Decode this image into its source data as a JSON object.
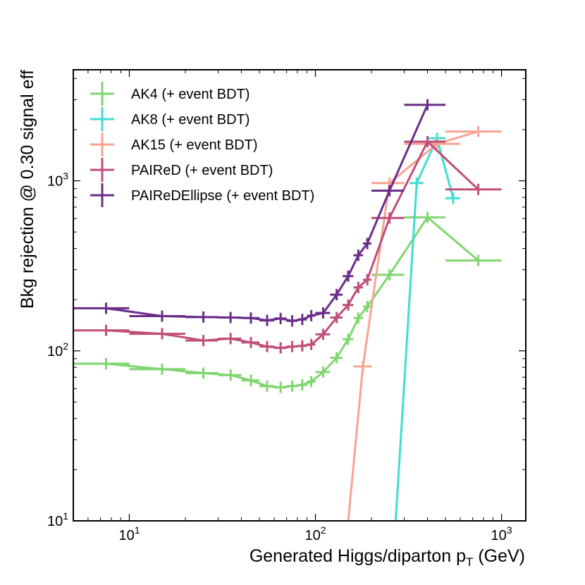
{
  "chart_data": {
    "type": "line",
    "xscale": "log",
    "yscale": "log",
    "xlim": [
      5,
      1350
    ],
    "ylim": [
      10,
      4500
    ],
    "xlabel": "Generated Higgs/diparton p",
    "xlabel_sub": "T",
    "xlabel_unit": " (GeV)",
    "ylabel": "Bkg rejection @ 0.30 signal eff",
    "xticks": [
      {
        "value": 10,
        "base": "10",
        "exp": "1"
      },
      {
        "value": 100,
        "base": "10",
        "exp": "2"
      },
      {
        "value": 1000,
        "base": "10",
        "exp": "3"
      }
    ],
    "yticks": [
      {
        "value": 10,
        "base": "10",
        "exp": "1"
      },
      {
        "value": 100,
        "base": "10",
        "exp": "2"
      },
      {
        "value": 1000,
        "base": "10",
        "exp": "3"
      }
    ],
    "legend_position": "top-left",
    "series": [
      {
        "name": "AK4 (+ event BDT)",
        "color": "#7fd670",
        "points": [
          {
            "x": 7.5,
            "xlo": 5,
            "xhi": 10,
            "y": 84
          },
          {
            "x": 15,
            "xlo": 10,
            "xhi": 20,
            "y": 78
          },
          {
            "x": 25,
            "xlo": 20,
            "xhi": 30,
            "y": 74
          },
          {
            "x": 35,
            "xlo": 30,
            "xhi": 40,
            "y": 72
          },
          {
            "x": 45,
            "xlo": 40,
            "xhi": 50,
            "y": 67
          },
          {
            "x": 55,
            "xlo": 50,
            "xhi": 60,
            "y": 62
          },
          {
            "x": 65,
            "xlo": 60,
            "xhi": 70,
            "y": 61
          },
          {
            "x": 75,
            "xlo": 70,
            "xhi": 80,
            "y": 62
          },
          {
            "x": 85,
            "xlo": 80,
            "xhi": 90,
            "y": 63
          },
          {
            "x": 95,
            "xlo": 90,
            "xhi": 100,
            "y": 66
          },
          {
            "x": 110,
            "xlo": 100,
            "xhi": 120,
            "y": 75
          },
          {
            "x": 130,
            "xlo": 120,
            "xhi": 140,
            "y": 91
          },
          {
            "x": 150,
            "xlo": 140,
            "xhi": 160,
            "y": 117
          },
          {
            "x": 170,
            "xlo": 160,
            "xhi": 180,
            "y": 156
          },
          {
            "x": 190,
            "xlo": 180,
            "xhi": 200,
            "y": 182
          },
          {
            "x": 250,
            "xlo": 200,
            "xhi": 300,
            "y": 280
          },
          {
            "x": 400,
            "xlo": 300,
            "xhi": 500,
            "y": 610
          },
          {
            "x": 750,
            "xlo": 500,
            "xhi": 1000,
            "y": 340
          }
        ]
      },
      {
        "name": "AK8 (+ event BDT)",
        "color": "#40ddd0",
        "points": [
          {
            "x": 270,
            "xlo": 270,
            "xhi": 270,
            "y": 10
          },
          {
            "x": 350,
            "xlo": 320,
            "xhi": 380,
            "y": 970
          },
          {
            "x": 450,
            "xlo": 400,
            "xhi": 500,
            "y": 1780
          },
          {
            "x": 550,
            "xlo": 500,
            "xhi": 600,
            "y": 790
          }
        ]
      },
      {
        "name": "AK15 (+ event BDT)",
        "color": "#f9a393",
        "points": [
          {
            "x": 150,
            "xlo": 150,
            "xhi": 150,
            "y": 10
          },
          {
            "x": 180,
            "xlo": 160,
            "xhi": 200,
            "y": 81
          },
          {
            "x": 250,
            "xlo": 200,
            "xhi": 300,
            "y": 970
          },
          {
            "x": 450,
            "xlo": 300,
            "xhi": 600,
            "y": 1650
          },
          {
            "x": 750,
            "xlo": 500,
            "xhi": 1000,
            "y": 1950
          }
        ]
      },
      {
        "name": "PAIReD (+ event BDT)",
        "color": "#c04e78",
        "points": [
          {
            "x": 7.5,
            "xlo": 5,
            "xhi": 10,
            "y": 132
          },
          {
            "x": 15,
            "xlo": 10,
            "xhi": 20,
            "y": 126
          },
          {
            "x": 25,
            "xlo": 20,
            "xhi": 30,
            "y": 115
          },
          {
            "x": 35,
            "xlo": 30,
            "xhi": 40,
            "y": 118
          },
          {
            "x": 45,
            "xlo": 40,
            "xhi": 50,
            "y": 112
          },
          {
            "x": 55,
            "xlo": 50,
            "xhi": 60,
            "y": 106
          },
          {
            "x": 65,
            "xlo": 60,
            "xhi": 70,
            "y": 104
          },
          {
            "x": 75,
            "xlo": 70,
            "xhi": 80,
            "y": 106
          },
          {
            "x": 85,
            "xlo": 80,
            "xhi": 90,
            "y": 107
          },
          {
            "x": 95,
            "xlo": 90,
            "xhi": 100,
            "y": 109
          },
          {
            "x": 110,
            "xlo": 100,
            "xhi": 120,
            "y": 125
          },
          {
            "x": 130,
            "xlo": 120,
            "xhi": 140,
            "y": 157
          },
          {
            "x": 150,
            "xlo": 140,
            "xhi": 160,
            "y": 186
          },
          {
            "x": 170,
            "xlo": 160,
            "xhi": 180,
            "y": 236
          },
          {
            "x": 190,
            "xlo": 180,
            "xhi": 200,
            "y": 262
          },
          {
            "x": 250,
            "xlo": 200,
            "xhi": 300,
            "y": 605
          },
          {
            "x": 400,
            "xlo": 300,
            "xhi": 500,
            "y": 1700
          },
          {
            "x": 750,
            "xlo": 500,
            "xhi": 1000,
            "y": 890
          }
        ]
      },
      {
        "name": "PAIReDEllipse (+ event BDT)",
        "color": "#6b2d8a",
        "points": [
          {
            "x": 7.5,
            "xlo": 5,
            "xhi": 10,
            "y": 178
          },
          {
            "x": 15,
            "xlo": 10,
            "xhi": 20,
            "y": 160
          },
          {
            "x": 25,
            "xlo": 20,
            "xhi": 30,
            "y": 158
          },
          {
            "x": 35,
            "xlo": 30,
            "xhi": 40,
            "y": 157
          },
          {
            "x": 45,
            "xlo": 40,
            "xhi": 50,
            "y": 156
          },
          {
            "x": 55,
            "xlo": 50,
            "xhi": 60,
            "y": 151
          },
          {
            "x": 65,
            "xlo": 60,
            "xhi": 70,
            "y": 155
          },
          {
            "x": 75,
            "xlo": 70,
            "xhi": 80,
            "y": 150
          },
          {
            "x": 85,
            "xlo": 80,
            "xhi": 90,
            "y": 153
          },
          {
            "x": 95,
            "xlo": 90,
            "xhi": 100,
            "y": 161
          },
          {
            "x": 110,
            "xlo": 100,
            "xhi": 120,
            "y": 167
          },
          {
            "x": 130,
            "xlo": 120,
            "xhi": 140,
            "y": 214
          },
          {
            "x": 150,
            "xlo": 140,
            "xhi": 160,
            "y": 275
          },
          {
            "x": 170,
            "xlo": 160,
            "xhi": 180,
            "y": 365
          },
          {
            "x": 190,
            "xlo": 180,
            "xhi": 200,
            "y": 428
          },
          {
            "x": 250,
            "xlo": 200,
            "xhi": 300,
            "y": 875
          },
          {
            "x": 400,
            "xlo": 300,
            "xhi": 500,
            "y": 2800
          }
        ]
      }
    ]
  }
}
